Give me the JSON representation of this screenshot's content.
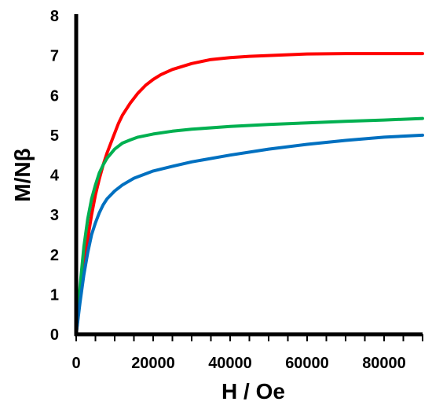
{
  "chart_data": {
    "type": "line",
    "title": "",
    "xlabel": "H / Oe",
    "ylabel": "M/Nβ",
    "xlim": [
      0,
      90000
    ],
    "ylim": [
      0,
      8
    ],
    "xticks": [
      0,
      20000,
      40000,
      60000,
      80000
    ],
    "yticks": [
      0,
      1,
      2,
      3,
      4,
      5,
      6,
      7,
      8
    ],
    "grid": false,
    "legend": "none",
    "series": [
      {
        "color": "#ff0000",
        "x": [
          0,
          1000,
          2000,
          3000,
          4000,
          5000,
          6000,
          7000,
          8000,
          9000,
          10000,
          11000,
          12000,
          14000,
          16000,
          18000,
          20000,
          22000,
          25000,
          30000,
          35000,
          40000,
          45000,
          50000,
          55000,
          60000,
          70000,
          80000,
          90000
        ],
        "y": [
          0,
          0.9,
          1.7,
          2.4,
          3.0,
          3.5,
          3.9,
          4.25,
          4.55,
          4.8,
          5.05,
          5.3,
          5.5,
          5.8,
          6.05,
          6.25,
          6.4,
          6.52,
          6.65,
          6.8,
          6.9,
          6.95,
          6.98,
          7.0,
          7.02,
          7.04,
          7.05,
          7.05,
          7.05
        ]
      },
      {
        "color": "#00b050",
        "x": [
          0,
          1000,
          2000,
          3000,
          4000,
          5000,
          6000,
          7000,
          8000,
          10000,
          12000,
          14000,
          16000,
          20000,
          25000,
          30000,
          40000,
          50000,
          60000,
          70000,
          80000,
          90000
        ],
        "y": [
          0,
          1.2,
          2.2,
          2.9,
          3.4,
          3.75,
          4.05,
          4.25,
          4.42,
          4.65,
          4.8,
          4.88,
          4.95,
          5.03,
          5.1,
          5.15,
          5.22,
          5.27,
          5.31,
          5.35,
          5.38,
          5.42
        ]
      },
      {
        "color": "#0070c0",
        "x": [
          0,
          1000,
          2000,
          3000,
          4000,
          5000,
          6000,
          7000,
          8000,
          10000,
          12000,
          15000,
          20000,
          25000,
          30000,
          40000,
          50000,
          60000,
          70000,
          80000,
          90000
        ],
        "y": [
          0,
          0.8,
          1.5,
          2.05,
          2.5,
          2.8,
          3.05,
          3.25,
          3.4,
          3.6,
          3.75,
          3.92,
          4.1,
          4.22,
          4.33,
          4.5,
          4.65,
          4.77,
          4.87,
          4.95,
          5.0
        ]
      }
    ]
  }
}
